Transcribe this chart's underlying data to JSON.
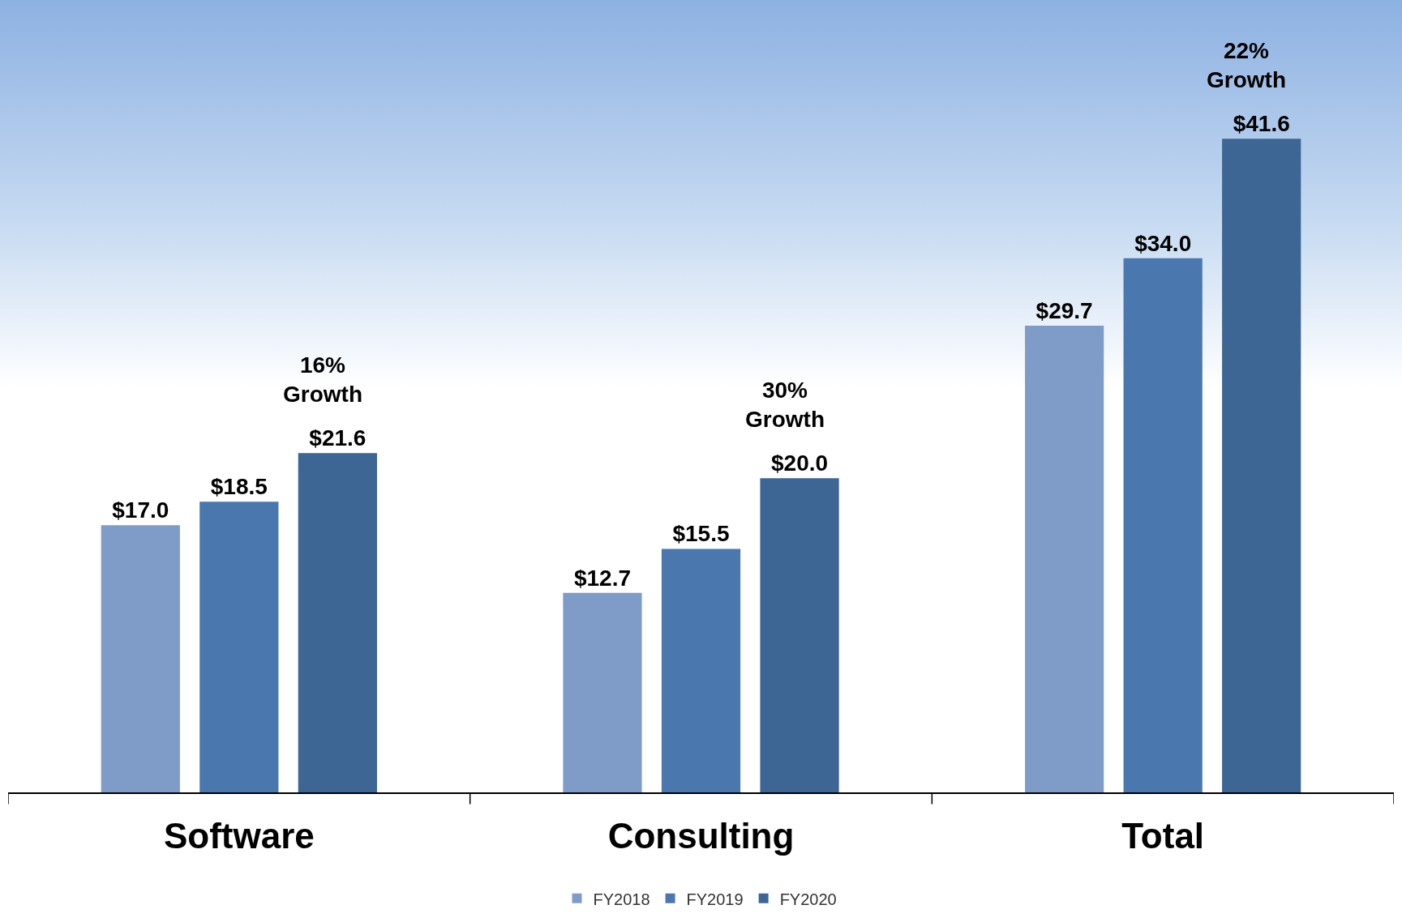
{
  "chart_data": {
    "type": "bar",
    "categories": [
      "Software",
      "Consulting",
      "Total"
    ],
    "series": [
      {
        "name": "FY2018",
        "color": "#7f9cc8",
        "values": [
          17.0,
          12.7,
          29.7
        ],
        "value_labels": [
          "$17.0",
          "$12.7",
          "$29.7"
        ]
      },
      {
        "name": "FY2019",
        "color": "#4a77ae",
        "values": [
          18.5,
          15.5,
          34.0
        ],
        "value_labels": [
          "$18.5",
          "$15.5",
          "$34.0"
        ]
      },
      {
        "name": "FY2020",
        "color": "#3d6694",
        "values": [
          21.6,
          20.0,
          41.6
        ],
        "value_labels": [
          "$21.6",
          "$20.0",
          "$41.6"
        ]
      }
    ],
    "annotations": [
      "16%\nGrowth",
      "30%\nGrowth",
      "22%\nGrowth"
    ],
    "legend": "bottom"
  }
}
